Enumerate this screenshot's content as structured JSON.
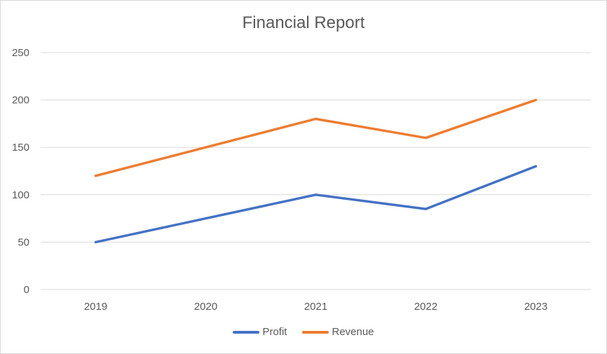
{
  "chart_data": {
    "type": "line",
    "title": "Financial Report",
    "categories": [
      "2019",
      "2020",
      "2021",
      "2022",
      "2023"
    ],
    "series": [
      {
        "name": "Profit",
        "values": [
          50,
          75,
          100,
          85,
          130
        ],
        "color": "#4472C4"
      },
      {
        "name": "Revenue",
        "values": [
          120,
          150,
          180,
          160,
          200
        ],
        "color": "#ED7D31"
      }
    ],
    "y_ticks": [
      "0",
      "50",
      "100",
      "150",
      "200",
      "250"
    ],
    "ylim": [
      0,
      250
    ],
    "grid": true,
    "legend_position": "bottom"
  }
}
